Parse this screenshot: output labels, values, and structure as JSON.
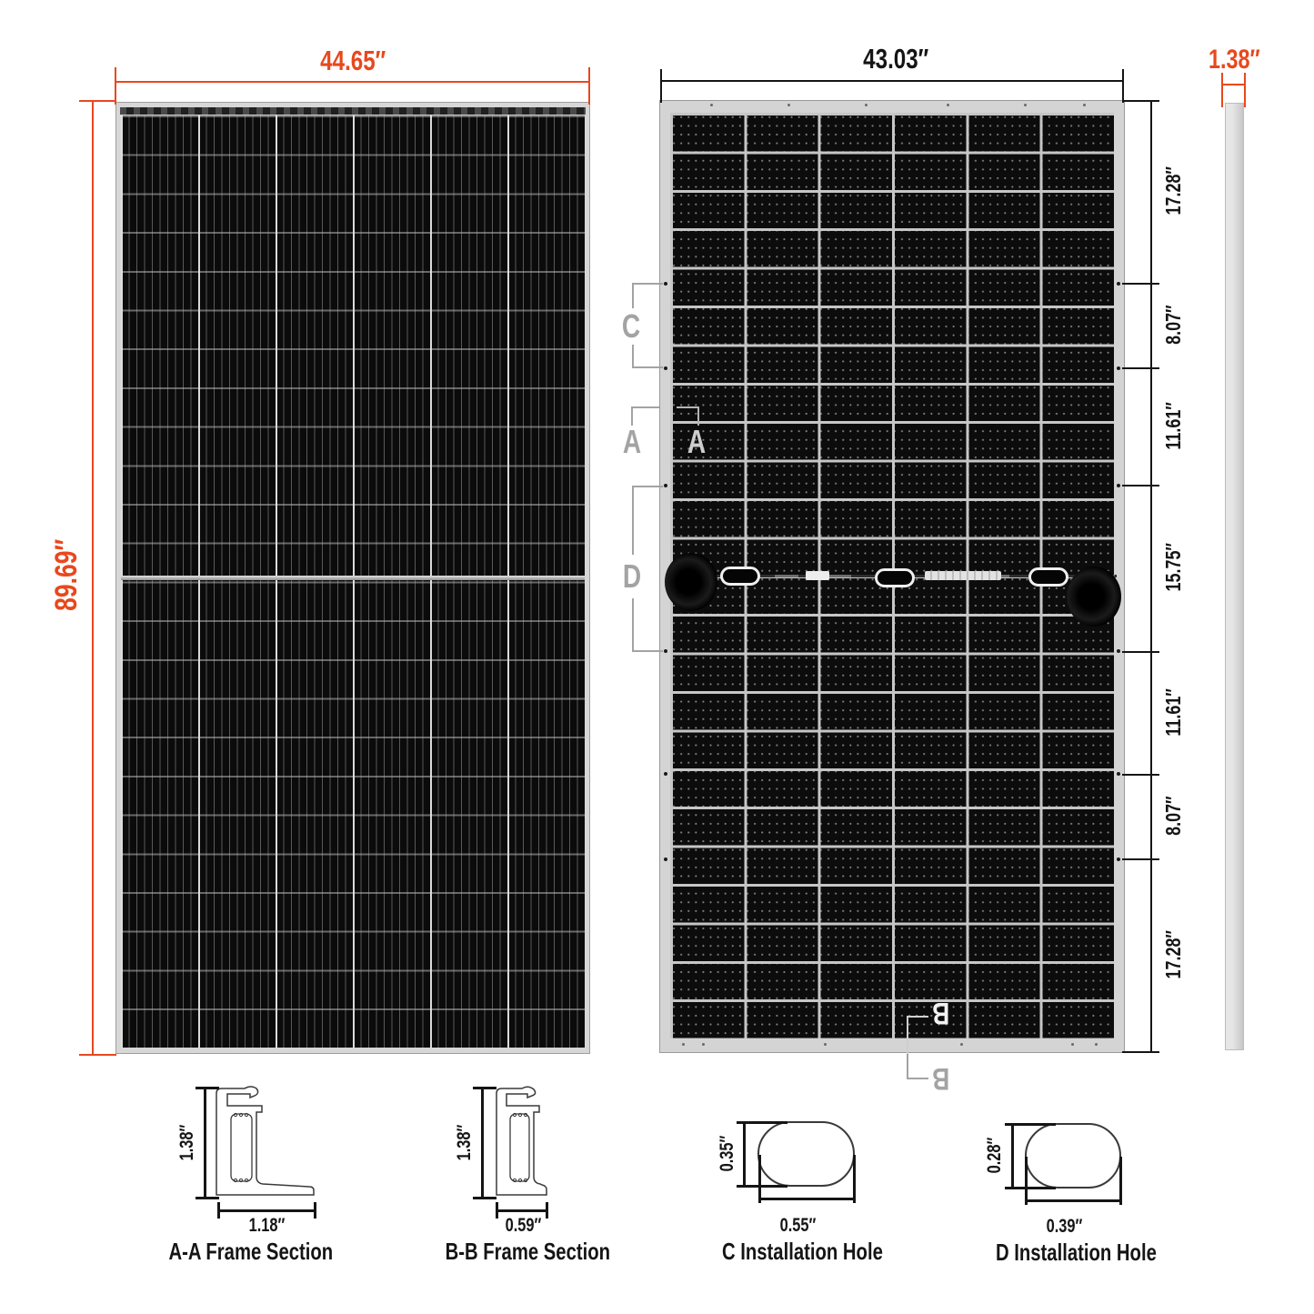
{
  "front_view": {
    "width_label": "44.65″",
    "height_label": "89.69″"
  },
  "back_view": {
    "width_label": "43.03″",
    "right_dim_labels": [
      "17.28″",
      "8.07″",
      "11.61″",
      "15.75″",
      "11.61″",
      "8.07″",
      "17.28″"
    ],
    "marker_letters": {
      "c": "C",
      "a": "A",
      "d": "D",
      "b": "B"
    }
  },
  "side_view": {
    "thickness_label": "1.38″"
  },
  "details": {
    "aa": {
      "caption": "A-A Frame Section",
      "height_label": "1.38″",
      "width_label": "1.18″"
    },
    "bb": {
      "caption": "B-B Frame Section",
      "height_label": "1.38″",
      "width_label": "0.59″"
    },
    "c_hole": {
      "caption": "C Installation Hole",
      "height_label": "0.35″",
      "width_label": "0.55″"
    },
    "d_hole": {
      "caption": "D Installation Hole",
      "height_label": "0.28″",
      "width_label": "0.39″"
    }
  },
  "colors": {
    "accent_orange": "#E8481D",
    "dim_black": "#151515",
    "marker_gray": "#A3A3A3",
    "frame_silver": "#D6D6D6",
    "cell_black": "#0B0B0B"
  }
}
